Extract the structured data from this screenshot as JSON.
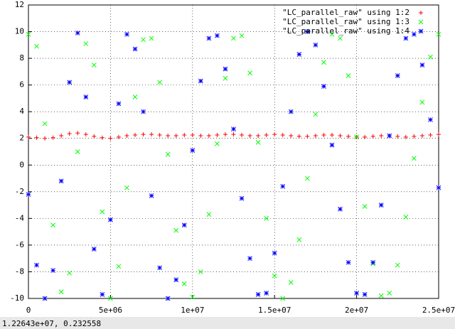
{
  "chart_data": {
    "type": "scatter",
    "x": [
      0,
      500000,
      1000000,
      1500000,
      2000000,
      2500000,
      3000000,
      3500000,
      4000000,
      4500000,
      5000000,
      5500000,
      6000000,
      6500000,
      7000000,
      7500000,
      8000000,
      8500000,
      9000000,
      9500000,
      10000000,
      10500000,
      11000000,
      11500000,
      12000000,
      12500000,
      13000000,
      13500000,
      14000000,
      14500000,
      15000000,
      15500000,
      16000000,
      16500000,
      17000000,
      17500000,
      18000000,
      18500000,
      19000000,
      19500000,
      20000000,
      20500000,
      21000000,
      21500000,
      22000000,
      22500000,
      23000000,
      23500000,
      24000000,
      24500000,
      25000000
    ],
    "series": [
      {
        "name": "\"LC_parallel_raw\" using 1:2",
        "color": "#ff0000",
        "marker": "+",
        "values": [
          2.1,
          2.05,
          2.0,
          2.05,
          2.2,
          2.35,
          2.4,
          2.3,
          2.15,
          2.05,
          2.0,
          2.1,
          2.2,
          2.25,
          2.3,
          2.3,
          2.25,
          2.2,
          2.2,
          2.25,
          2.25,
          2.2,
          2.2,
          2.25,
          2.3,
          2.3,
          2.25,
          2.2,
          2.2,
          2.25,
          2.3,
          2.25,
          2.2,
          2.15,
          2.15,
          2.2,
          2.25,
          2.25,
          2.2,
          2.15,
          2.1,
          2.1,
          2.15,
          2.2,
          2.2,
          2.15,
          2.1,
          2.15,
          2.2,
          2.25,
          2.3
        ]
      },
      {
        "name": "\"LC_parallel_raw\" using 1:3",
        "color": "#00ff00",
        "marker": "x",
        "values": [
          9.8,
          8.9,
          3.1,
          -4.5,
          -9.5,
          -8.1,
          1.0,
          9.1,
          7.5,
          -3.5,
          -10,
          -7.6,
          -1.7,
          5.1,
          9.4,
          9.5,
          6.2,
          0.8,
          -4.9,
          -8.9,
          -9.9,
          -8.0,
          -3.7,
          1.6,
          6.5,
          9.5,
          9.7,
          6.9,
          1.7,
          -4.0,
          -8.3,
          -10,
          -8.8,
          -5.6,
          -1.0,
          3.8,
          7.7,
          9.8,
          9.5,
          6.7,
          2.1,
          -3.1,
          -7.4,
          -9.8,
          -9.6,
          -7.5,
          -3.9,
          0.5,
          4.7,
          8.1,
          9.8
        ]
      },
      {
        "name": "\"LC_parallel_raw\" using 1:4",
        "color": "#0000ff",
        "marker": "*",
        "values": [
          -2.2,
          -7.5,
          -10,
          -7.9,
          -1.2,
          6.2,
          9.9,
          5.1,
          -6.3,
          -9.7,
          -4.1,
          4.6,
          9.8,
          8.7,
          4.0,
          -2.3,
          -7.7,
          -10,
          -8.6,
          -4.5,
          1.1,
          6.3,
          9.5,
          9.7,
          7.2,
          2.7,
          -2.5,
          -7.0,
          -9.7,
          -9.6,
          -6.6,
          -1.6,
          4.0,
          8.3,
          10,
          9.0,
          5.9,
          1.5,
          -3.3,
          -7.3,
          -9.6,
          -9.7,
          -7.3,
          -3.0,
          2.2,
          6.7,
          9.5,
          9.8,
          7.5,
          3.4,
          -1.7
        ]
      }
    ],
    "xlim": [
      0,
      25000000
    ],
    "ylim": [
      -10,
      12
    ],
    "xticks": [
      0,
      {
        "value": 5000000,
        "label": "5e+06"
      },
      {
        "value": 10000000,
        "label": "1e+07"
      },
      {
        "value": 15000000,
        "label": "1.5e+07"
      },
      {
        "value": 20000000,
        "label": "2e+07"
      },
      {
        "value": 25000000,
        "label": "2.5e+07"
      }
    ],
    "yticks": [
      -10,
      -8,
      -6,
      -4,
      -2,
      0,
      2,
      4,
      6,
      8,
      10,
      12
    ],
    "grid": true,
    "legend": "top-right"
  },
  "status_bar": "1.22643e+07,  0.232558"
}
